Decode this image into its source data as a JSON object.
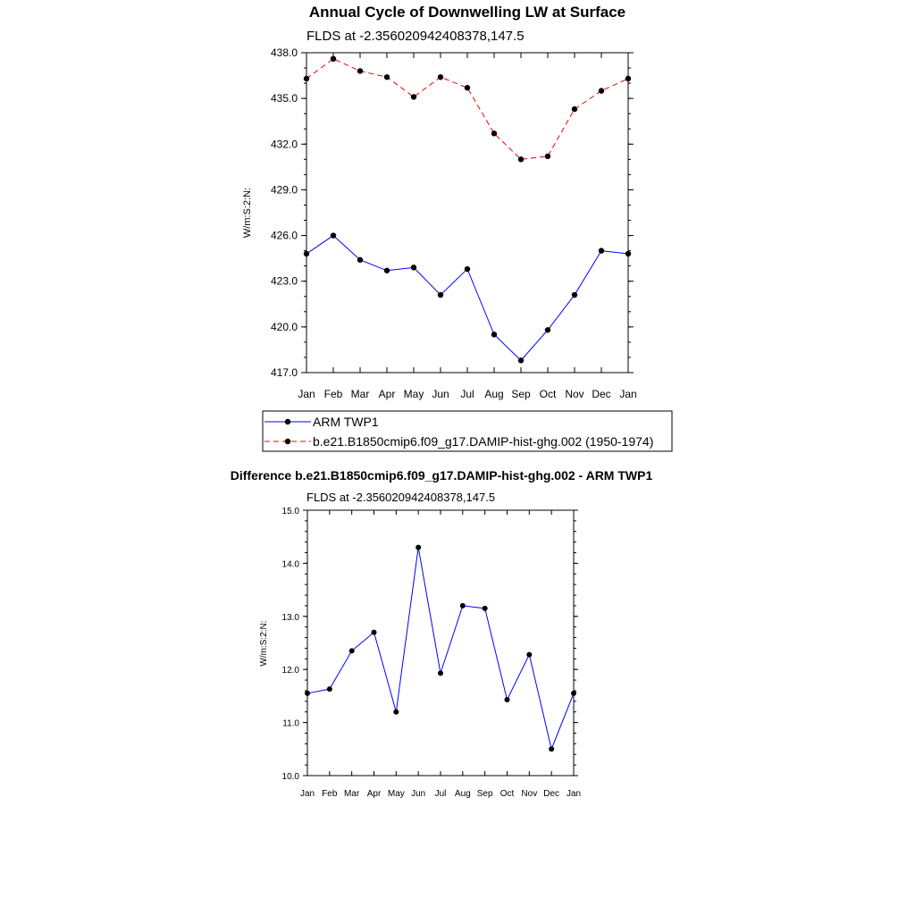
{
  "main_title": "Annual Cycle of Downwelling LW at Surface",
  "colors": {
    "obs": "#0000ff",
    "model": "#ee0000",
    "diff": "#0000ff",
    "marker": "#000000"
  },
  "chart_data": [
    {
      "type": "line",
      "subtitle": "FLDS at -2.356020942408378,147.5",
      "xlabel": "",
      "ylabel": "W/m:S:2:N:",
      "categories": [
        "Jan",
        "Feb",
        "Mar",
        "Apr",
        "May",
        "Jun",
        "Jul",
        "Aug",
        "Sep",
        "Oct",
        "Nov",
        "Dec",
        "Jan"
      ],
      "ylim": [
        417.0,
        438.0
      ],
      "y_ticks": [
        "417.0",
        "420.0",
        "423.0",
        "426.0",
        "429.0",
        "432.0",
        "435.0",
        "438.0"
      ],
      "series": [
        {
          "name": "ARM TWP1",
          "style": "solid",
          "values": [
            424.8,
            426.0,
            424.4,
            423.7,
            423.9,
            422.1,
            423.8,
            419.5,
            417.8,
            419.8,
            422.1,
            425.0,
            424.8
          ]
        },
        {
          "name": "b.e21.B1850cmip6.f09_g17.DAMIP-hist-ghg.002 (1950-1974)",
          "style": "dashed",
          "values": [
            436.3,
            437.6,
            436.8,
            436.4,
            435.1,
            436.4,
            435.7,
            432.7,
            431.0,
            431.2,
            434.3,
            435.5,
            436.3
          ]
        }
      ],
      "legend": {
        "placement": "below",
        "entries": [
          "ARM TWP1",
          "b.e21.B1850cmip6.f09_g17.DAMIP-hist-ghg.002 (1950-1974)"
        ]
      }
    },
    {
      "type": "line",
      "title": "Difference b.e21.B1850cmip6.f09_g17.DAMIP-hist-ghg.002 - ARM TWP1",
      "subtitle": "FLDS at -2.356020942408378,147.5",
      "xlabel": "",
      "ylabel": "W/m:S:2:N:",
      "categories": [
        "Jan",
        "Feb",
        "Mar",
        "Apr",
        "May",
        "Jun",
        "Jul",
        "Aug",
        "Sep",
        "Oct",
        "Nov",
        "Dec",
        "Jan"
      ],
      "ylim": [
        10.0,
        15.0
      ],
      "y_ticks": [
        "10.0",
        "11.0",
        "12.0",
        "13.0",
        "14.0",
        "15.0"
      ],
      "series": [
        {
          "name": "Difference",
          "style": "solid",
          "values": [
            11.55,
            11.63,
            12.35,
            12.7,
            11.2,
            14.3,
            11.93,
            13.2,
            13.15,
            11.43,
            12.28,
            10.5,
            11.55
          ]
        }
      ]
    }
  ]
}
